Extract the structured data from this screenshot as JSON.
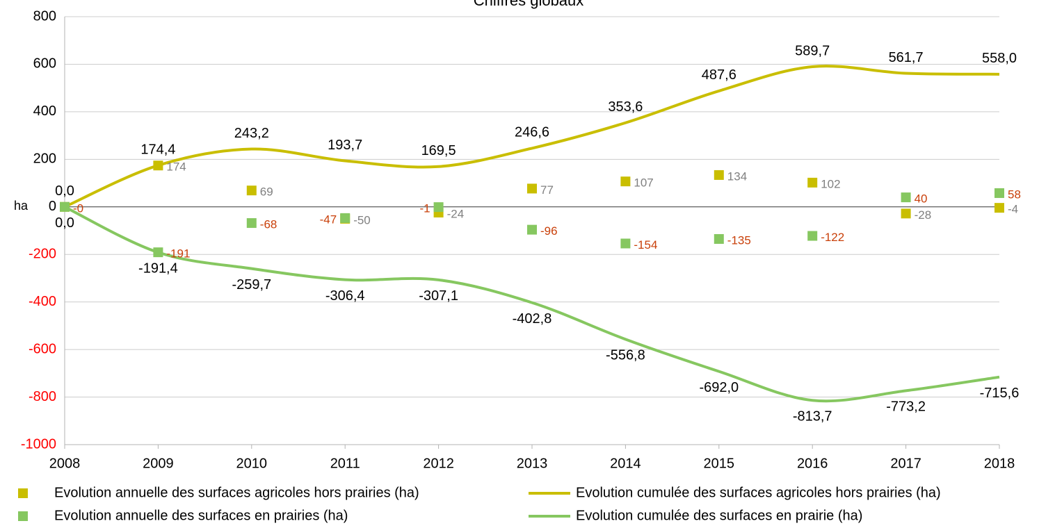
{
  "chart_data": {
    "type": "line",
    "title": "Chiffres globaux",
    "y_label": "ha",
    "categories": [
      "2008",
      "2009",
      "2010",
      "2011",
      "2012",
      "2013",
      "2014",
      "2015",
      "2016",
      "2017",
      "2018"
    ],
    "ylim": [
      -1000,
      800
    ],
    "yticks": [
      -1000,
      -800,
      -600,
      -400,
      -200,
      0,
      200,
      400,
      600,
      800
    ],
    "grid": true,
    "negative_tick_color": "#ff0000",
    "series": [
      {
        "name": "Evolution annuelle des surfaces agricoles hors prairies (ha)",
        "kind": "marker",
        "color": "#c9be00",
        "label_color": "#808080",
        "values": [
          0,
          174,
          69,
          -50,
          -24,
          77,
          107,
          134,
          102,
          -28,
          -4
        ],
        "value_labels": [
          null,
          "174",
          "69",
          "-50",
          "-24",
          "77",
          "107",
          "134",
          "102",
          "-28",
          "-4"
        ]
      },
      {
        "name": "Evolution annuelle des surfaces en prairies (ha)",
        "kind": "marker",
        "color": "#86c760",
        "label_color": "#c9400a",
        "values": [
          0,
          -191,
          -68,
          -47,
          -1,
          -96,
          -154,
          -135,
          -122,
          40,
          58
        ],
        "value_labels": [
          "-0",
          "-191",
          "-68",
          "-47",
          "-1",
          "-96",
          "-154",
          "-135",
          "-122",
          "40",
          "58"
        ]
      },
      {
        "name": "Evolution cumulée des surfaces agricoles hors prairies (ha)",
        "kind": "line",
        "color": "#c9be00",
        "label_color": "#000000",
        "values": [
          0,
          174.4,
          243.2,
          193.7,
          169.5,
          246.6,
          353.6,
          487.6,
          589.7,
          561.7,
          558.0
        ],
        "value_labels": [
          "0,0",
          "174,4",
          "243,2",
          "193,7",
          "169,5",
          "246,6",
          "353,6",
          "487,6",
          "589,7",
          "561,7",
          "558,0"
        ]
      },
      {
        "name": "Evolution cumulée des surfaces en prairie (ha)",
        "kind": "line",
        "color": "#86c760",
        "label_color": "#000000",
        "values": [
          0,
          -191.4,
          -259.7,
          -306.4,
          -307.1,
          -402.8,
          -556.8,
          -692.0,
          -813.7,
          -773.2,
          -715.6
        ],
        "value_labels": [
          "0,0",
          "-191,4",
          "-259,7",
          "-306,4",
          "-307,1",
          "-402,8",
          "-556,8",
          "-692,0",
          "-813,7",
          "-773,2",
          "-715,6"
        ]
      }
    ]
  }
}
